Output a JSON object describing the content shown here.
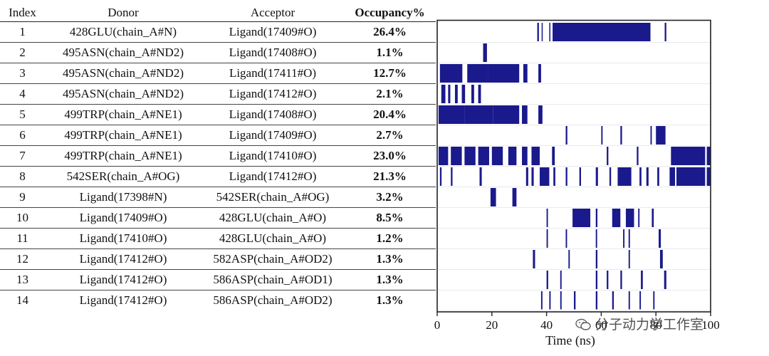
{
  "table": {
    "headers": [
      "Index",
      "Donor",
      "Acceptor",
      "Occupancy%"
    ],
    "rows": [
      [
        "1",
        "428GLU(chain_A#N)",
        "Ligand(17409#O)",
        "26.4%"
      ],
      [
        "2",
        "495ASN(chain_A#ND2)",
        "Ligand(17408#O)",
        "1.1%"
      ],
      [
        "3",
        "495ASN(chain_A#ND2)",
        "Ligand(17411#O)",
        "12.7%"
      ],
      [
        "4",
        "495ASN(chain_A#ND2)",
        "Ligand(17412#O)",
        "2.1%"
      ],
      [
        "5",
        "499TRP(chain_A#NE1)",
        "Ligand(17408#O)",
        "20.4%"
      ],
      [
        "6",
        "499TRP(chain_A#NE1)",
        "Ligand(17409#O)",
        "2.7%"
      ],
      [
        "7",
        "499TRP(chain_A#NE1)",
        "Ligand(17410#O)",
        "23.0%"
      ],
      [
        "8",
        "542SER(chain_A#OG)",
        "Ligand(17412#O)",
        "21.3%"
      ],
      [
        "9",
        "Ligand(17398#N)",
        "542SER(chain_A#OG)",
        "3.2%"
      ],
      [
        "10",
        "Ligand(17409#O)",
        "428GLU(chain_A#O)",
        "8.5%"
      ],
      [
        "11",
        "Ligand(17410#O)",
        "428GLU(chain_A#O)",
        "1.2%"
      ],
      [
        "12",
        "Ligand(17412#O)",
        "582ASP(chain_A#OD2)",
        "1.3%"
      ],
      [
        "13",
        "Ligand(17412#O)",
        "586ASP(chain_A#OD1)",
        "1.3%"
      ],
      [
        "14",
        "Ligand(17412#O)",
        "586ASP(chain_A#OD2)",
        "1.3%"
      ]
    ]
  },
  "chart_data": {
    "type": "heatmap",
    "title": "",
    "xlabel": "Time (ns)",
    "ylabel": "",
    "xlim": [
      0,
      100
    ],
    "xticks": [
      0,
      20,
      40,
      60,
      80,
      100
    ],
    "xtick_labels": [
      "0",
      "20",
      "40",
      "60",
      "80",
      "100"
    ],
    "bar_color": "#1a1a8c",
    "series": [
      {
        "name": "1",
        "occupancy": 26.4,
        "intervals": [
          [
            36.6,
            37.2
          ],
          [
            38.2,
            38.6
          ],
          [
            41.0,
            41.4
          ],
          [
            42.2,
            78.0
          ],
          [
            83.2,
            83.8
          ]
        ]
      },
      {
        "name": "2",
        "occupancy": 1.1,
        "intervals": [
          [
            16.8,
            18.2
          ]
        ]
      },
      {
        "name": "3",
        "occupancy": 12.7,
        "intervals": [
          [
            1.0,
            9.2
          ],
          [
            11.0,
            18.5
          ],
          [
            18.5,
            30.0
          ],
          [
            31.5,
            33.0
          ],
          [
            37.0,
            38.0
          ]
        ]
      },
      {
        "name": "4",
        "occupancy": 2.1,
        "intervals": [
          [
            1.5,
            3.0
          ],
          [
            4.0,
            4.8
          ],
          [
            6.5,
            7.5
          ],
          [
            9.0,
            10.2
          ],
          [
            12.5,
            13.5
          ],
          [
            15.0,
            16.0
          ]
        ]
      },
      {
        "name": "5",
        "occupancy": 20.4,
        "intervals": [
          [
            0.5,
            10.0
          ],
          [
            10.0,
            20.5
          ],
          [
            20.5,
            30.0
          ],
          [
            31.0,
            33.0
          ],
          [
            37.0,
            38.5
          ]
        ]
      },
      {
        "name": "6",
        "occupancy": 2.7,
        "intervals": [
          [
            47.0,
            47.6
          ],
          [
            60.0,
            60.5
          ],
          [
            67.0,
            67.6
          ],
          [
            78.0,
            78.5
          ],
          [
            80.0,
            83.5
          ]
        ]
      },
      {
        "name": "7",
        "occupancy": 23.0,
        "intervals": [
          [
            0.5,
            4.0
          ],
          [
            5.0,
            9.0
          ],
          [
            10.0,
            14.0
          ],
          [
            15.0,
            19.0
          ],
          [
            20.0,
            24.0
          ],
          [
            26.0,
            29.0
          ],
          [
            31.0,
            33.0
          ],
          [
            34.5,
            37.5
          ],
          [
            42.0,
            43.0
          ],
          [
            62.0,
            62.6
          ],
          [
            73.0,
            73.6
          ],
          [
            85.5,
            98.0
          ],
          [
            98.6,
            100.0
          ]
        ]
      },
      {
        "name": "8",
        "occupancy": 21.3,
        "intervals": [
          [
            1.0,
            1.6
          ],
          [
            5.0,
            5.6
          ],
          [
            15.5,
            16.3
          ],
          [
            32.5,
            33.3
          ],
          [
            34.5,
            35.3
          ],
          [
            37.5,
            41.0
          ],
          [
            42.5,
            43.2
          ],
          [
            47.0,
            47.6
          ],
          [
            52.0,
            52.6
          ],
          [
            58.0,
            58.8
          ],
          [
            63.0,
            63.6
          ],
          [
            66.0,
            71.0
          ],
          [
            74.0,
            74.7
          ],
          [
            76.5,
            77.3
          ],
          [
            80.5,
            81.2
          ],
          [
            85.0,
            87.0
          ],
          [
            87.5,
            98.0
          ],
          [
            98.6,
            100.0
          ]
        ]
      },
      {
        "name": "9",
        "occupancy": 3.2,
        "intervals": [
          [
            19.5,
            21.5
          ],
          [
            27.5,
            29.0
          ]
        ]
      },
      {
        "name": "10",
        "occupancy": 8.5,
        "intervals": [
          [
            40.0,
            40.5
          ],
          [
            49.5,
            56.0
          ],
          [
            58.0,
            58.6
          ],
          [
            64.0,
            67.0
          ],
          [
            69.0,
            72.0
          ],
          [
            73.5,
            74.0
          ],
          [
            78.5,
            79.2
          ]
        ]
      },
      {
        "name": "11",
        "occupancy": 1.2,
        "intervals": [
          [
            40.0,
            40.5
          ],
          [
            47.0,
            47.5
          ],
          [
            58.0,
            58.5
          ],
          [
            68.0,
            68.5
          ],
          [
            70.0,
            70.5
          ],
          [
            81.0,
            81.8
          ]
        ]
      },
      {
        "name": "12",
        "occupancy": 1.3,
        "intervals": [
          [
            35.0,
            35.8
          ],
          [
            48.0,
            48.5
          ],
          [
            58.0,
            58.6
          ],
          [
            70.0,
            70.5
          ],
          [
            81.5,
            82.5
          ]
        ]
      },
      {
        "name": "13",
        "occupancy": 1.3,
        "intervals": [
          [
            40.0,
            40.6
          ],
          [
            45.0,
            45.5
          ],
          [
            58.0,
            58.6
          ],
          [
            62.0,
            62.6
          ],
          [
            67.0,
            67.6
          ],
          [
            74.5,
            75.2
          ],
          [
            83.0,
            83.8
          ]
        ]
      },
      {
        "name": "14",
        "occupancy": 1.3,
        "intervals": [
          [
            38.0,
            38.5
          ],
          [
            41.0,
            41.5
          ],
          [
            45.0,
            45.5
          ],
          [
            50.0,
            50.6
          ],
          [
            58.0,
            58.6
          ],
          [
            64.0,
            64.6
          ],
          [
            70.0,
            70.5
          ],
          [
            74.0,
            74.5
          ],
          [
            79.0,
            79.5
          ]
        ]
      }
    ]
  },
  "watermark": {
    "text": "分子动力学工作室"
  }
}
